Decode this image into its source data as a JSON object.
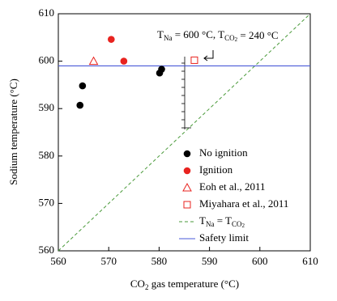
{
  "chart_data": {
    "type": "scatter",
    "x_label": [
      {
        "text": "CO"
      },
      {
        "text": "2",
        "sub": true
      },
      {
        "text": " gas temperature (°C)"
      }
    ],
    "y_label": "Sodium temperature (°C)",
    "xlim": [
      560,
      610
    ],
    "ylim": [
      560,
      610
    ],
    "xticks": [
      560,
      570,
      580,
      590,
      600,
      610
    ],
    "yticks": [
      560,
      570,
      580,
      590,
      600,
      610
    ],
    "series": [
      {
        "name": "No ignition",
        "color": "#000000",
        "marker": "circle",
        "x": [
          564.3,
          564.8,
          580.1,
          580.5
        ],
        "y": [
          590.7,
          594.8,
          597.5,
          598.3
        ]
      },
      {
        "name": "Ignition",
        "color": "#e8231f",
        "marker": "circle",
        "x": [
          570.5,
          573
        ],
        "y": [
          604.6,
          600
        ]
      },
      {
        "name": "Eoh et al., 2011",
        "color": "#e8231f",
        "marker": "triangle-open",
        "x": [
          567
        ],
        "y": [
          600
        ]
      },
      {
        "name": "Miyahara et al., 2011",
        "color": "#e8231f",
        "marker": "square-open",
        "x": [
          587
        ],
        "y": [
          600.2
        ]
      }
    ],
    "lines": [
      {
        "kind": "identity",
        "name": [
          {
            "text": "T"
          },
          {
            "text": "Na",
            "sub": true
          },
          {
            "text": " = T"
          },
          {
            "text": "CO",
            "sub": true
          },
          {
            "text": "2",
            "sub2": true
          }
        ],
        "color": "#4a9a3a",
        "dashed": true
      },
      {
        "kind": "hline",
        "y": 599,
        "name": [
          {
            "text": "Safety limit"
          }
        ],
        "color": "#4a5ad8",
        "dashed": false
      }
    ],
    "annotation": [
      {
        "text": "T"
      },
      {
        "text": "Na",
        "sub": true
      },
      {
        "text": " = 600 °C, T"
      },
      {
        "text": "CO",
        "sub": true
      },
      {
        "text": "2",
        "sub2": true
      },
      {
        "text": " = 240 °C"
      }
    ]
  }
}
